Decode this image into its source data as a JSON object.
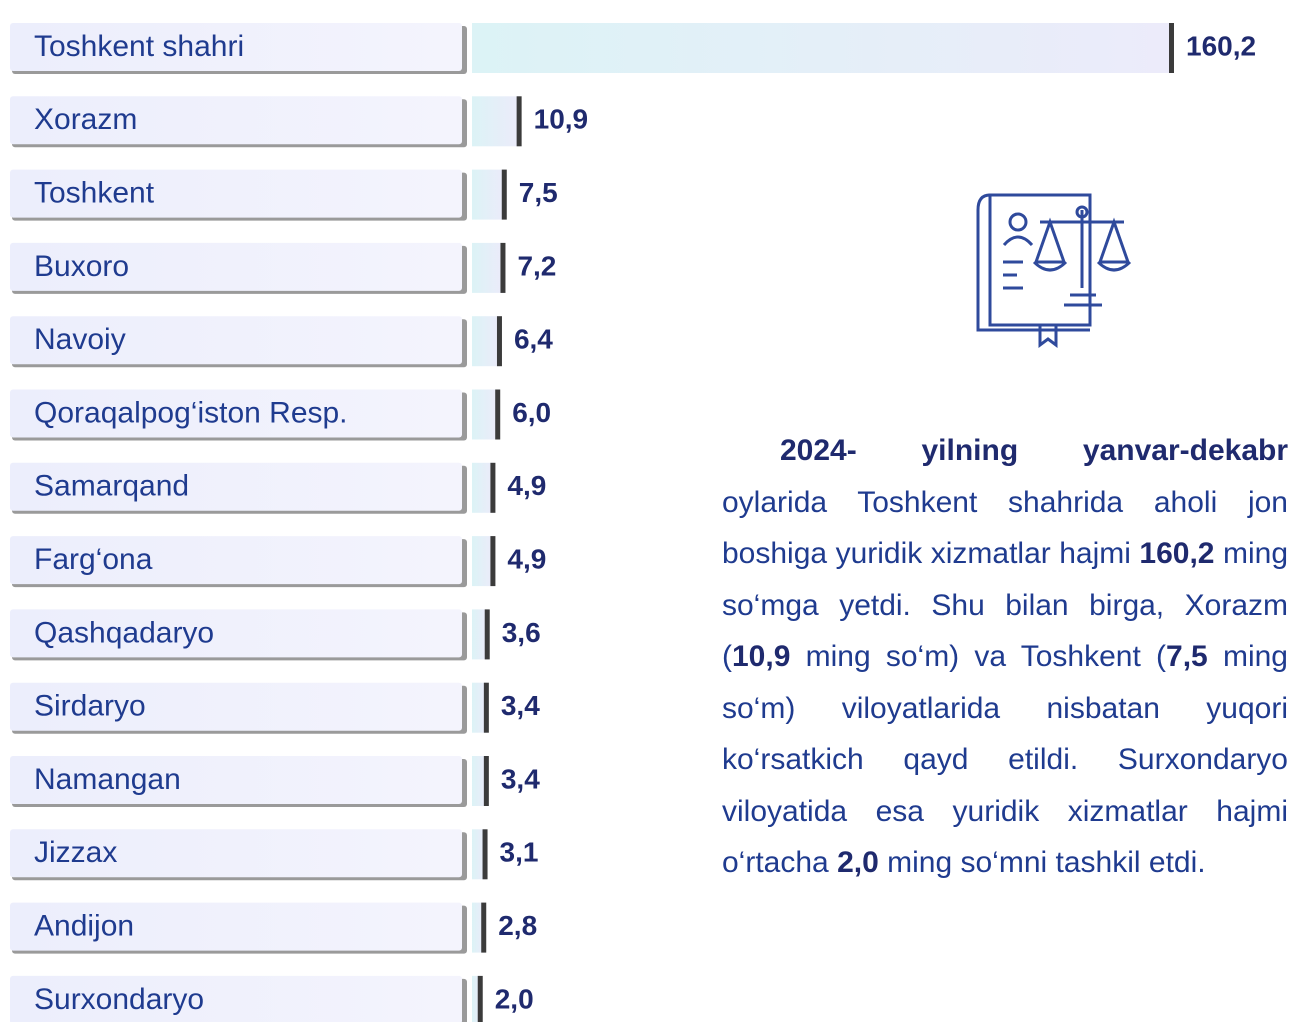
{
  "chart_data": {
    "type": "bar",
    "orientation": "horizontal",
    "categories": [
      "Toshkent shahri",
      "Xorazm",
      "Toshkent",
      "Buxoro",
      "Navoiy",
      "Qoraqalpog‘iston Resp.",
      "Samarqand",
      "Farg‘ona",
      "Qashqadaryo",
      "Sirdaryo",
      "Namangan",
      "Jizzax",
      "Andijon",
      "Surxondaryo"
    ],
    "values": [
      160.2,
      10.9,
      7.5,
      7.2,
      6.4,
      6.0,
      4.9,
      4.9,
      3.6,
      3.4,
      3.4,
      3.1,
      2.8,
      2.0
    ],
    "value_labels": [
      "160,2",
      "10,9",
      "7,5",
      "7,2",
      "6,4",
      "6,0",
      "4,9",
      "4,9",
      "3,6",
      "3,4",
      "3,4",
      "3,1",
      "2,8",
      "2,0"
    ],
    "color": "#dff3f7"
  },
  "description": {
    "segments": [
      {
        "text": "2024- yilning yanvar-dekabr",
        "bold": true
      },
      {
        "text": " oylarida Toshkent shahrida aholi jon boshiga yuridik xizmatlar hajmi ",
        "bold": false
      },
      {
        "text": "160,2",
        "bold": true
      },
      {
        "text": " ming so‘mga yetdi. Shu bilan birga, Xorazm (",
        "bold": false
      },
      {
        "text": "10,9",
        "bold": true
      },
      {
        "text": " ming so‘m) va Toshkent (",
        "bold": false
      },
      {
        "text": "7,5",
        "bold": true
      },
      {
        "text": " ming so‘m) viloyatlarida nisbatan yuqori ko‘rsatkich qayd etildi. Surxondaryo viloyatida esa yuridik xizmatlar hajmi o‘rtacha ",
        "bold": false
      },
      {
        "text": "2,0",
        "bold": true
      },
      {
        "text": " ming so‘mni tashkil etdi.",
        "bold": false
      }
    ]
  }
}
